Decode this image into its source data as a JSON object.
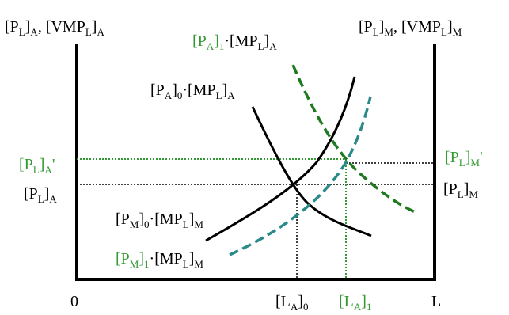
{
  "colors": {
    "axis": "#000000",
    "green": "#339933",
    "dark_green": "#1f7a1f",
    "teal": "#2a8a8a",
    "black": "#000000",
    "background": "#ffffff"
  },
  "axes": {
    "left_title": {
      "a": "[P",
      "b": "L",
      "c": "]",
      "d": "A",
      "e": ", [VMP",
      "f": "L",
      "g": "]",
      "h": "A"
    },
    "right_title": {
      "a": "[P",
      "b": "L",
      "c": "]",
      "d": "M",
      "e": ", [VMP",
      "f": "L",
      "g": "]",
      "h": "M"
    },
    "origin": "0",
    "x_axis_end": "L"
  },
  "curves": {
    "demand_a0": {
      "a": "[P",
      "b": "A",
      "c": "]",
      "d": "0",
      "e": "·[MP",
      "f": "L",
      "g": "]",
      "h": "A"
    },
    "demand_a1": {
      "a": "[P",
      "b": "A",
      "c": "]",
      "d": "1",
      "e": "·[MP",
      "f": "L",
      "g": "]",
      "h": "A"
    },
    "demand_m0": {
      "a": "[P",
      "b": "M",
      "c": "]",
      "d": "0",
      "e": "·[MP",
      "f": "L",
      "g": "]",
      "h": "M"
    },
    "demand_m1": {
      "a": "[P",
      "b": "M",
      "c": "]",
      "d": "1",
      "e": "·[MP",
      "f": "L",
      "g": "]",
      "h": "M"
    }
  },
  "levels": {
    "wage_a0": {
      "a": "[P",
      "b": "L",
      "c": "]",
      "d": "A"
    },
    "wage_a1": {
      "a": "[P",
      "b": "L",
      "c": "]",
      "d": "A",
      "e": "'"
    },
    "wage_m0": {
      "a": "[P",
      "b": "L",
      "c": "]",
      "d": "M"
    },
    "wage_m1": {
      "a": "[P",
      "b": "L",
      "c": "]",
      "d": "M",
      "e": "'"
    },
    "labor_a0": {
      "a": "[L",
      "b": "A",
      "c": "]",
      "d": "0"
    },
    "labor_a1": {
      "a": "[L",
      "b": "A",
      "c": "]",
      "d": "1"
    }
  }
}
